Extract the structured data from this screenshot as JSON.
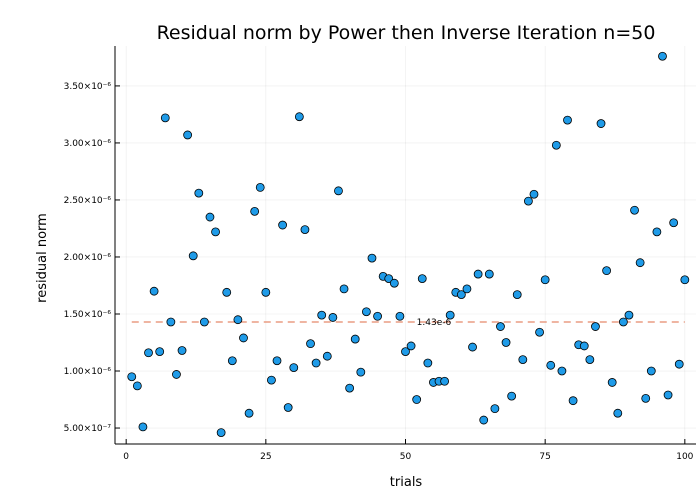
{
  "chart_data": {
    "type": "scatter",
    "title": "Residual norm by Power then Inverse Iteration  n=50",
    "xlabel": "trials",
    "ylabel": "residual norm",
    "xlim": [
      -2,
      102
    ],
    "ylim": [
      3.6e-07,
      3.85e-06
    ],
    "grid": true,
    "legend": false,
    "x_ticks": [
      {
        "value": 0,
        "label": "0"
      },
      {
        "value": 25,
        "label": "25"
      },
      {
        "value": 50,
        "label": "50"
      },
      {
        "value": 75,
        "label": "75"
      },
      {
        "value": 100,
        "label": "100"
      }
    ],
    "y_ticks": [
      {
        "value": 5e-07,
        "label": "5.00×10⁻⁷"
      },
      {
        "value": 1e-06,
        "label": "1.00×10⁻⁶"
      },
      {
        "value": 1.5e-06,
        "label": "1.50×10⁻⁶"
      },
      {
        "value": 2e-06,
        "label": "2.00×10⁻⁶"
      },
      {
        "value": 2.5e-06,
        "label": "2.50×10⁻⁶"
      },
      {
        "value": 3e-06,
        "label": "3.00×10⁻⁶"
      },
      {
        "value": 3.5e-06,
        "label": "3.50×10⁻⁶"
      }
    ],
    "series": [
      {
        "marker_color": "#1f9be8",
        "marker_edge": "#000000",
        "x": [
          1,
          2,
          3,
          4,
          5,
          6,
          7,
          8,
          9,
          10,
          11,
          12,
          13,
          14,
          15,
          16,
          17,
          18,
          19,
          20,
          21,
          22,
          23,
          24,
          25,
          26,
          27,
          28,
          29,
          30,
          31,
          32,
          33,
          34,
          35,
          36,
          37,
          38,
          39,
          40,
          41,
          42,
          43,
          44,
          45,
          46,
          47,
          48,
          49,
          50,
          51,
          52,
          53,
          54,
          55,
          56,
          57,
          58,
          59,
          60,
          61,
          62,
          63,
          64,
          65,
          66,
          67,
          68,
          69,
          70,
          71,
          72,
          73,
          74,
          75,
          76,
          77,
          78,
          79,
          80,
          81,
          82,
          83,
          84,
          85,
          86,
          87,
          88,
          89,
          90,
          91,
          92,
          93,
          94,
          95,
          96,
          97,
          98,
          99,
          100
        ],
        "y": [
          9.5e-07,
          8.7e-07,
          5.1e-07,
          1.16e-06,
          1.7e-06,
          1.17e-06,
          3.22e-06,
          1.43e-06,
          9.7e-07,
          1.18e-06,
          3.07e-06,
          2.01e-06,
          2.56e-06,
          1.43e-06,
          2.35e-06,
          2.22e-06,
          4.6e-07,
          1.69e-06,
          1.09e-06,
          1.45e-06,
          1.29e-06,
          6.3e-07,
          2.4e-06,
          2.61e-06,
          1.69e-06,
          9.2e-07,
          1.09e-06,
          2.28e-06,
          6.8e-07,
          1.03e-06,
          3.23e-06,
          2.24e-06,
          1.24e-06,
          1.07e-06,
          1.49e-06,
          1.13e-06,
          1.47e-06,
          2.58e-06,
          1.72e-06,
          8.5e-07,
          1.28e-06,
          9.9e-07,
          1.52e-06,
          1.99e-06,
          1.48e-06,
          1.83e-06,
          1.81e-06,
          1.77e-06,
          1.48e-06,
          1.17e-06,
          1.22e-06,
          7.5e-07,
          1.81e-06,
          1.07e-06,
          9e-07,
          9.1e-07,
          9.1e-07,
          1.49e-06,
          1.69e-06,
          1.67e-06,
          1.72e-06,
          1.21e-06,
          1.85e-06,
          5.7e-07,
          1.85e-06,
          6.7e-07,
          1.39e-06,
          1.25e-06,
          7.8e-07,
          1.67e-06,
          1.1e-06,
          2.49e-06,
          2.55e-06,
          1.34e-06,
          1.8e-06,
          1.05e-06,
          2.98e-06,
          1e-06,
          3.2e-06,
          7.4e-07,
          1.23e-06,
          1.22e-06,
          1.1e-06,
          1.39e-06,
          3.17e-06,
          1.88e-06,
          9e-07,
          6.3e-07,
          1.43e-06,
          1.49e-06,
          2.41e-06,
          1.95e-06,
          7.6e-07,
          1e-06,
          2.22e-06,
          3.76e-06,
          7.9e-07,
          2.3e-06,
          1.06e-06,
          1.8e-06
        ]
      }
    ],
    "hline": {
      "value": 1.43e-06,
      "color": "#e5896a",
      "style": "dashed",
      "label": "1.43e-6",
      "label_x": 52
    }
  }
}
